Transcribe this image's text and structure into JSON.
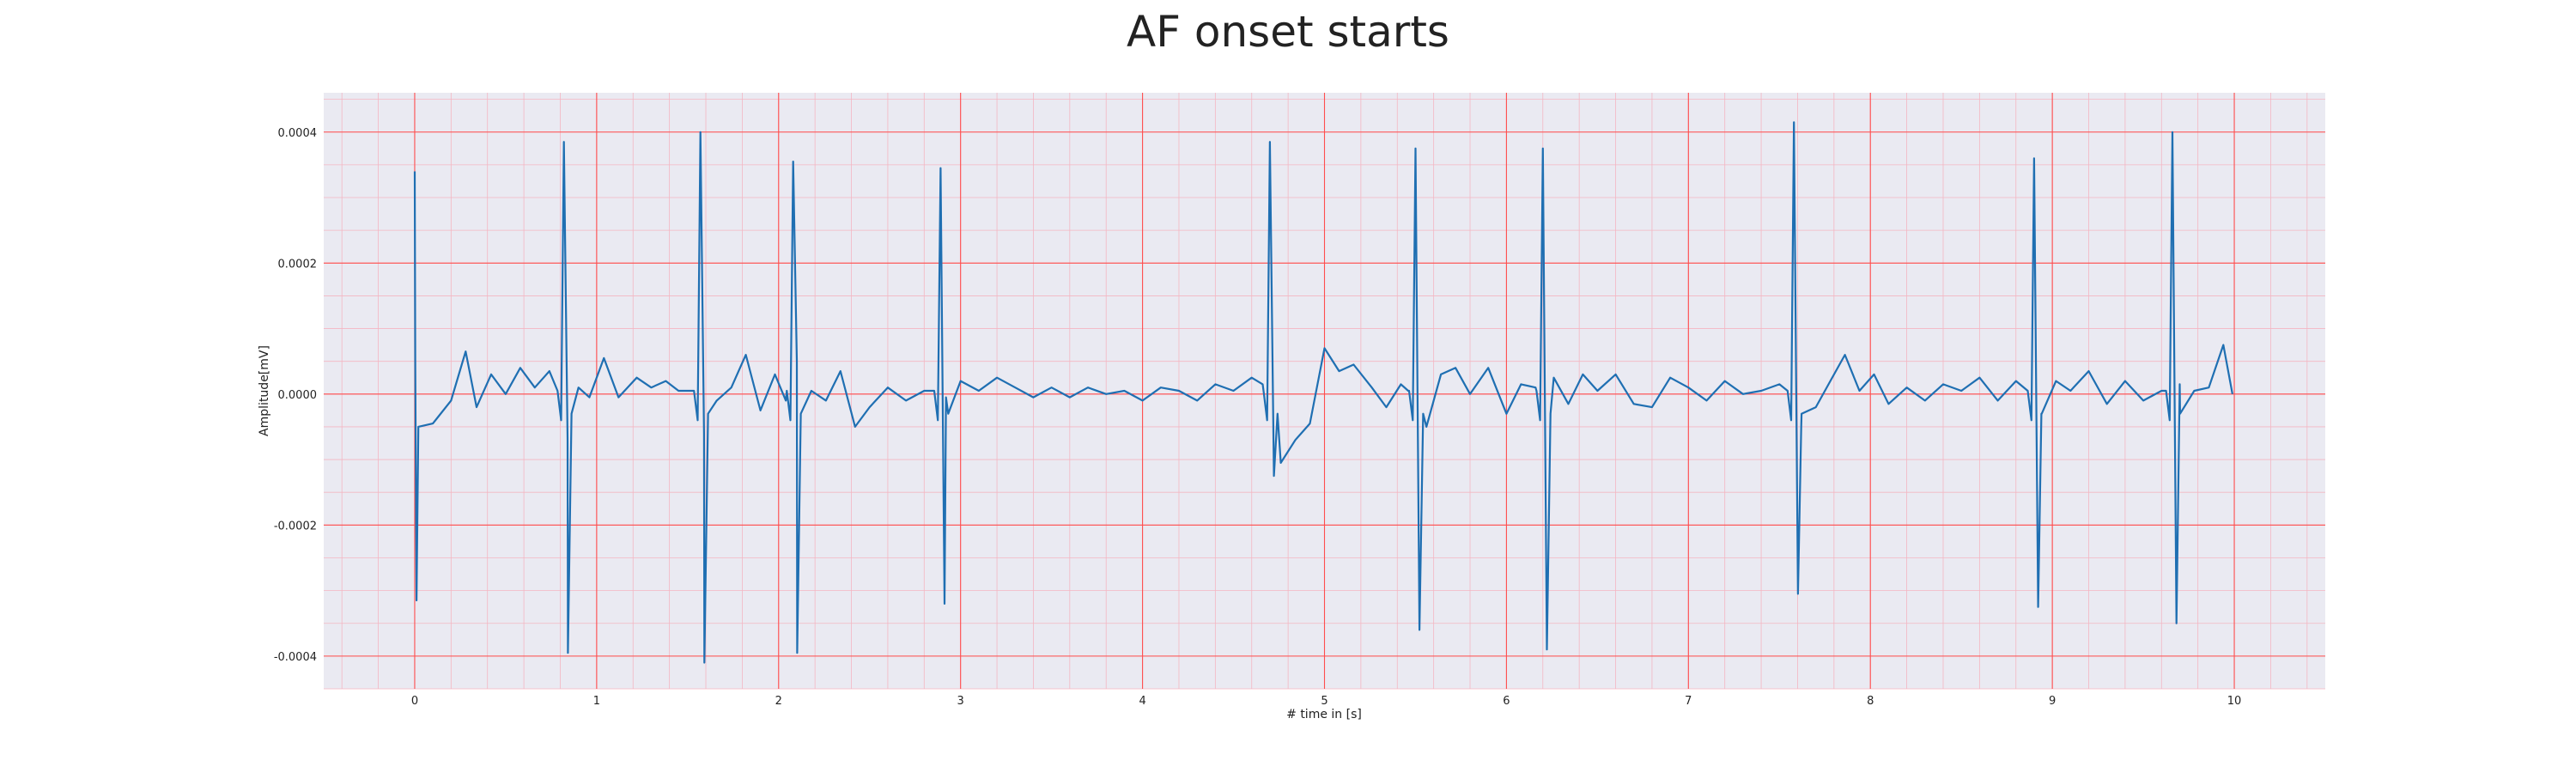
{
  "chart_data": {
    "type": "line",
    "title": "AF onset starts",
    "xlabel": "# time in [s]",
    "ylabel": "Amplitude[mV]",
    "xlim": [
      -0.5,
      10.5
    ],
    "ylim": [
      -0.00045,
      0.00046
    ],
    "xticks": [
      0,
      1,
      2,
      3,
      4,
      5,
      6,
      7,
      8,
      9,
      10
    ],
    "yticks": [
      -0.0004,
      -0.0002,
      0.0,
      0.0002,
      0.0004
    ],
    "ytick_labels": [
      "-0.0004",
      "-0.0002",
      "0.0000",
      "0.0002",
      "0.0004"
    ],
    "grid": true,
    "minor_grid": true,
    "colors": {
      "background": "#eaeaf2",
      "major_grid": "#ff4d4d",
      "minor_grid": "#f4b6c2",
      "line": "#1f6fb2"
    },
    "series": [
      {
        "beats": [
          {
            "t": 0.0,
            "r": 0.00034,
            "s": -0.000315
          },
          {
            "t": 0.82,
            "r": 0.000385,
            "s": -0.000395
          },
          {
            "t": 1.57,
            "r": 0.0004,
            "s": -0.00041
          },
          {
            "t": 2.08,
            "r": 0.000355,
            "s": -0.000395
          },
          {
            "t": 2.89,
            "r": 0.000345,
            "s": -0.00032
          },
          {
            "t": 4.7,
            "r": 0.000385,
            "s": -0.000125
          },
          {
            "t": 5.5,
            "r": 0.000375,
            "s": -0.00036
          },
          {
            "t": 6.2,
            "r": 0.000375,
            "s": -0.00039
          },
          {
            "t": 7.58,
            "r": 0.000415,
            "s": -0.000305
          },
          {
            "t": 8.9,
            "r": 0.00036,
            "s": -0.000325
          },
          {
            "t": 9.66,
            "r": 0.0004,
            "s": -0.00035
          }
        ],
        "baseline": [
          [
            0.02,
            -5e-05
          ],
          [
            0.1,
            -4.5e-05
          ],
          [
            0.2,
            -1e-05
          ],
          [
            0.28,
            6.5e-05
          ],
          [
            0.34,
            -2e-05
          ],
          [
            0.42,
            3e-05
          ],
          [
            0.5,
            0.0
          ],
          [
            0.58,
            4e-05
          ],
          [
            0.66,
            1e-05
          ],
          [
            0.74,
            3.5e-05
          ],
          [
            0.84,
            -7e-05
          ],
          [
            0.9,
            1e-05
          ],
          [
            0.96,
            -5e-06
          ],
          [
            1.04,
            5.5e-05
          ],
          [
            1.12,
            -5e-06
          ],
          [
            1.22,
            2.5e-05
          ],
          [
            1.3,
            1e-05
          ],
          [
            1.38,
            2e-05
          ],
          [
            1.45,
            5e-06
          ],
          [
            1.59,
            -6e-05
          ],
          [
            1.66,
            -1e-05
          ],
          [
            1.74,
            1e-05
          ],
          [
            1.82,
            6e-05
          ],
          [
            1.9,
            -2.5e-05
          ],
          [
            1.98,
            3e-05
          ],
          [
            2.04,
            -1e-05
          ],
          [
            2.1,
            5e-05
          ],
          [
            2.18,
            5e-06
          ],
          [
            2.26,
            -1e-05
          ],
          [
            2.34,
            3.5e-05
          ],
          [
            2.42,
            -5e-05
          ],
          [
            2.5,
            -2e-05
          ],
          [
            2.6,
            1e-05
          ],
          [
            2.7,
            -1e-05
          ],
          [
            2.8,
            5e-06
          ],
          [
            2.92,
            -5e-06
          ],
          [
            3.0,
            2e-05
          ],
          [
            3.1,
            5e-06
          ],
          [
            3.2,
            2.5e-05
          ],
          [
            3.3,
            1e-05
          ],
          [
            3.4,
            -5e-06
          ],
          [
            3.5,
            1e-05
          ],
          [
            3.6,
            -5e-06
          ],
          [
            3.7,
            1e-05
          ],
          [
            3.8,
            0.0
          ],
          [
            3.9,
            5e-06
          ],
          [
            4.0,
            -1e-05
          ],
          [
            4.1,
            1e-05
          ],
          [
            4.2,
            5e-06
          ],
          [
            4.3,
            -1e-05
          ],
          [
            4.4,
            1.5e-05
          ],
          [
            4.5,
            5e-06
          ],
          [
            4.6,
            2.5e-05
          ],
          [
            4.66,
            1.5e-05
          ],
          [
            4.76,
            -0.000105
          ],
          [
            4.84,
            -7e-05
          ],
          [
            4.92,
            -4.5e-05
          ],
          [
            5.0,
            7e-05
          ],
          [
            5.08,
            3.5e-05
          ],
          [
            5.16,
            4.5e-05
          ],
          [
            5.26,
            1e-05
          ],
          [
            5.34,
            -2e-05
          ],
          [
            5.42,
            1.5e-05
          ],
          [
            5.46,
            5e-06
          ],
          [
            5.56,
            -5e-05
          ],
          [
            5.64,
            3e-05
          ],
          [
            5.72,
            4e-05
          ],
          [
            5.8,
            0.0
          ],
          [
            5.9,
            4e-05
          ],
          [
            6.0,
            -3e-05
          ],
          [
            6.08,
            1.5e-05
          ],
          [
            6.16,
            1e-05
          ],
          [
            6.26,
            2.5e-05
          ],
          [
            6.34,
            -1.5e-05
          ],
          [
            6.42,
            3e-05
          ],
          [
            6.5,
            5e-06
          ],
          [
            6.6,
            3e-05
          ],
          [
            6.7,
            -1.5e-05
          ],
          [
            6.8,
            -2e-05
          ],
          [
            6.9,
            2.5e-05
          ],
          [
            7.0,
            1e-05
          ],
          [
            7.1,
            -1e-05
          ],
          [
            7.2,
            2e-05
          ],
          [
            7.3,
            0.0
          ],
          [
            7.4,
            5e-06
          ],
          [
            7.5,
            1.5e-05
          ],
          [
            7.62,
            -5e-05
          ],
          [
            7.7,
            -2e-05
          ],
          [
            7.78,
            2e-05
          ],
          [
            7.86,
            6e-05
          ],
          [
            7.94,
            5e-06
          ],
          [
            8.02,
            3e-05
          ],
          [
            8.1,
            -1.5e-05
          ],
          [
            8.2,
            1e-05
          ],
          [
            8.3,
            -1e-05
          ],
          [
            8.4,
            1.5e-05
          ],
          [
            8.5,
            5e-06
          ],
          [
            8.6,
            2.5e-05
          ],
          [
            8.7,
            -1e-05
          ],
          [
            8.8,
            2e-05
          ],
          [
            8.94,
            -3e-05
          ],
          [
            9.02,
            2e-05
          ],
          [
            9.1,
            5e-06
          ],
          [
            9.2,
            3.5e-05
          ],
          [
            9.3,
            -1.5e-05
          ],
          [
            9.4,
            2e-05
          ],
          [
            9.5,
            -1e-05
          ],
          [
            9.6,
            5e-06
          ],
          [
            9.7,
            1.5e-05
          ],
          [
            9.78,
            5e-06
          ],
          [
            9.86,
            1e-05
          ],
          [
            9.94,
            7.5e-05
          ],
          [
            9.99,
            0.0
          ]
        ]
      }
    ]
  }
}
